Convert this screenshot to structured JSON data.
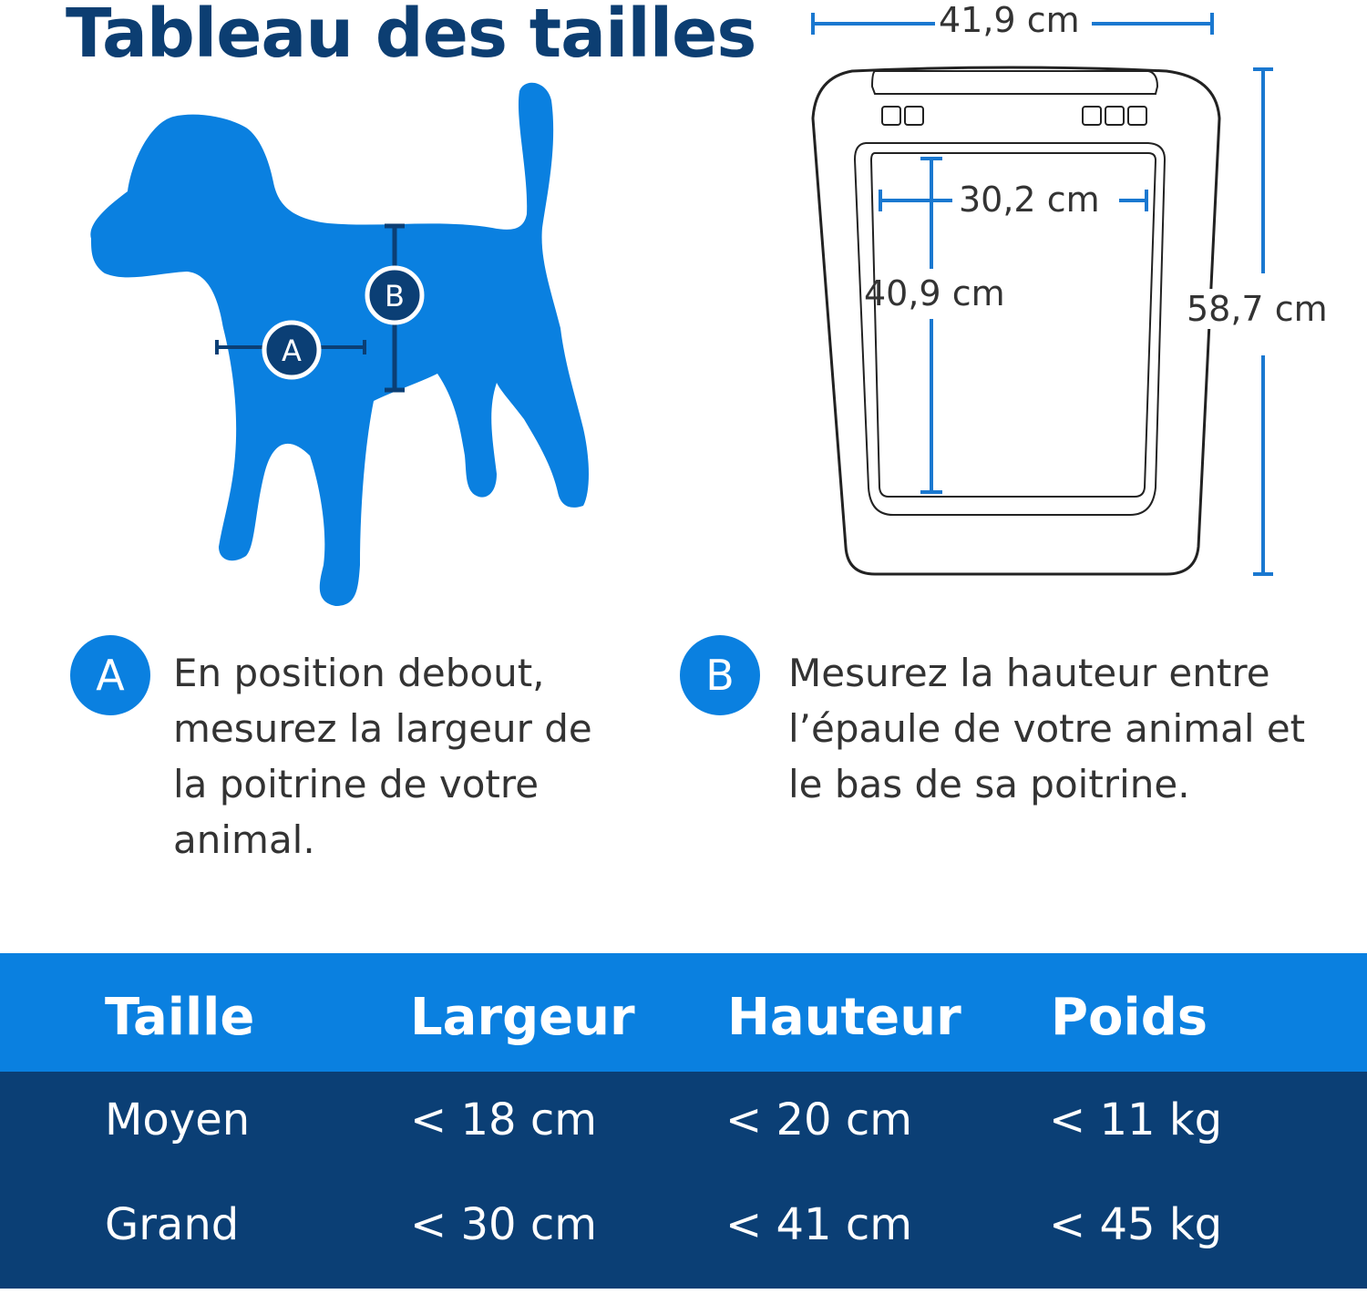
{
  "title": "Tableau des tailles",
  "dimensions": {
    "outer_width": "41,9 cm",
    "outer_height": "58,7 cm",
    "opening_width": "30,2 cm",
    "opening_height": "40,9 cm"
  },
  "markers": {
    "a": "A",
    "b": "B"
  },
  "instructions": [
    {
      "badge": "A",
      "lines": [
        "En position debout,",
        "mesurez la largeur de",
        "la poitrine de votre",
        "animal."
      ]
    },
    {
      "badge": "B",
      "lines": [
        "Mesurez la hauteur entre",
        "l’épaule de votre animal et",
        "le bas de sa poitrine."
      ]
    }
  ],
  "table": {
    "headers": [
      "Taille",
      "Largeur",
      "Hauteur",
      "Poids"
    ],
    "rows": [
      [
        "Moyen",
        "< 18 cm",
        "< 20 cm",
        "< 11 kg"
      ],
      [
        "Grand",
        "< 30 cm",
        "< 41 cm",
        "< 45 kg"
      ]
    ]
  },
  "colors": {
    "brand_blue": "#0a80e0",
    "navy": "#0b3f75",
    "title": "#0c3e72"
  }
}
